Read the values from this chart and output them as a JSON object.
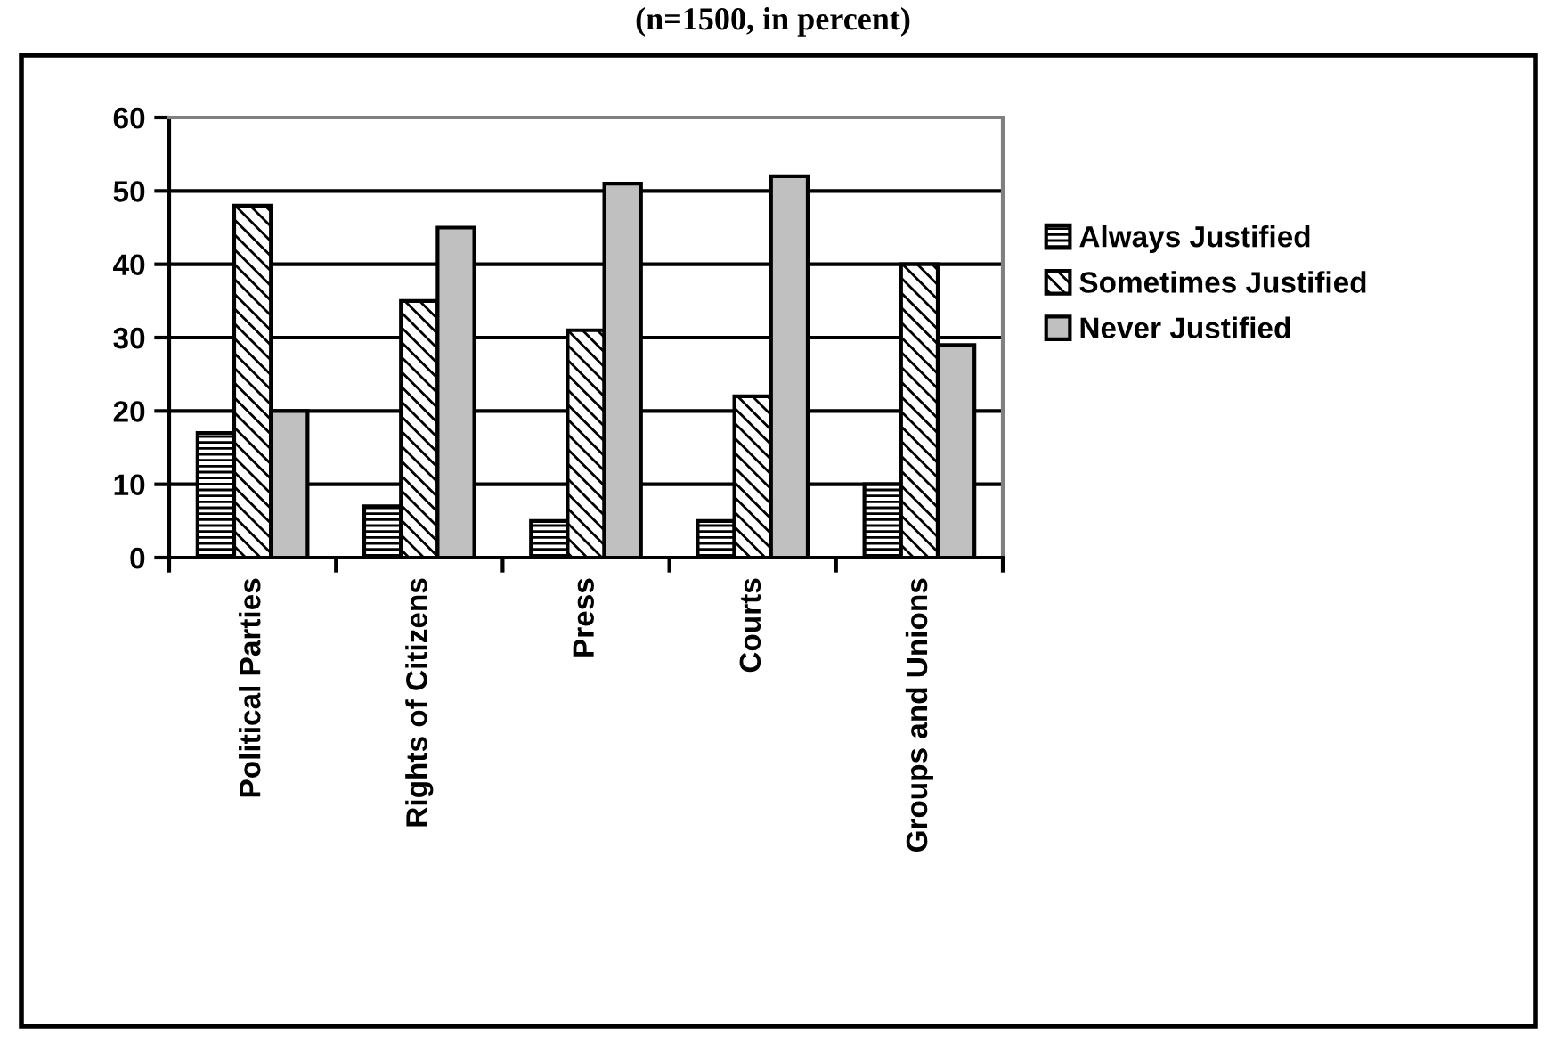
{
  "chart_data": {
    "type": "bar",
    "title": "(n=1500, in percent)",
    "categories": [
      "Political Parties",
      "Rights of Citizens",
      "Press",
      "Courts",
      "Groups and Unions"
    ],
    "series": [
      {
        "name": "Always Justified",
        "color": "#000000",
        "values": [
          17,
          7,
          5,
          5,
          10
        ]
      },
      {
        "name": "Sometimes Justified",
        "color": "#000000",
        "values": [
          48,
          35,
          31,
          22,
          40
        ]
      },
      {
        "name": "Never Justified",
        "color": "#c0c0c0",
        "values": [
          20,
          45,
          51,
          52,
          29
        ]
      }
    ],
    "ylim": [
      0,
      60
    ],
    "yticks": [
      0,
      10,
      20,
      30,
      40,
      50,
      60
    ],
    "grid": "y",
    "legend": "right"
  }
}
